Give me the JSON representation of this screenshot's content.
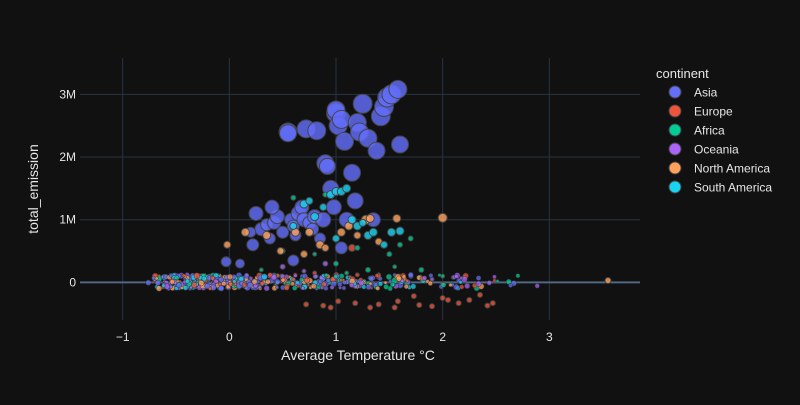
{
  "chart_data": {
    "type": "scatter",
    "title": "",
    "xlabel": "Average Temperature °C",
    "ylabel": "total_emission",
    "xlim": [
      -1.4,
      3.85
    ],
    "ylim": [
      -0.6,
      3.58
    ],
    "y_unit": "millions",
    "x_ticks": [
      {
        "value": -1,
        "label": "−1"
      },
      {
        "value": 0,
        "label": "0"
      },
      {
        "value": 1,
        "label": "1"
      },
      {
        "value": 2,
        "label": "2"
      },
      {
        "value": 3,
        "label": "3"
      }
    ],
    "y_ticks": [
      {
        "value": 0,
        "label": "0"
      },
      {
        "value": 1,
        "label": "1M"
      },
      {
        "value": 2,
        "label": "2M"
      },
      {
        "value": 3,
        "label": "3M"
      }
    ],
    "grid": true,
    "legend": {
      "title": "continent",
      "placement": "right"
    },
    "series": [
      {
        "name": "Asia",
        "color": "#636efa",
        "points": [
          [
            -0.03,
            0.33
          ],
          [
            0.1,
            0.3
          ],
          [
            0.22,
            0.6
          ],
          [
            0.25,
            1.1
          ],
          [
            0.3,
            0.85
          ],
          [
            0.35,
            0.92
          ],
          [
            0.38,
            0.7
          ],
          [
            0.42,
            0.95
          ],
          [
            0.45,
            1.05
          ],
          [
            0.5,
            0.8
          ],
          [
            0.55,
            2.4
          ],
          [
            0.55,
            2.38
          ],
          [
            0.58,
            1.0
          ],
          [
            0.6,
            0.9
          ],
          [
            0.62,
            0.75
          ],
          [
            0.65,
            1.1
          ],
          [
            0.68,
            1.2
          ],
          [
            0.7,
            1.0
          ],
          [
            0.72,
            2.45
          ],
          [
            0.75,
            0.95
          ],
          [
            0.78,
            0.85
          ],
          [
            0.8,
            1.05
          ],
          [
            0.82,
            2.42
          ],
          [
            0.85,
            0.7
          ],
          [
            0.88,
            1.0
          ],
          [
            0.9,
            1.9
          ],
          [
            0.92,
            1.85
          ],
          [
            0.95,
            1.5
          ],
          [
            0.98,
            1.2
          ],
          [
            1.0,
            2.7
          ],
          [
            1.0,
            2.75
          ],
          [
            1.02,
            2.5
          ],
          [
            1.05,
            2.6
          ],
          [
            1.08,
            2.25
          ],
          [
            1.1,
            1.0
          ],
          [
            1.15,
            1.75
          ],
          [
            1.18,
            1.3
          ],
          [
            1.2,
            2.55
          ],
          [
            1.22,
            2.4
          ],
          [
            1.25,
            2.85
          ],
          [
            1.3,
            2.3
          ],
          [
            1.35,
            1.0
          ],
          [
            1.38,
            2.1
          ],
          [
            1.42,
            2.65
          ],
          [
            1.45,
            2.8
          ],
          [
            1.48,
            2.95
          ],
          [
            1.52,
            3.0
          ],
          [
            1.58,
            3.08
          ],
          [
            1.6,
            2.2
          ],
          [
            0.2,
            0.8
          ],
          [
            0.4,
            1.2
          ],
          [
            0.6,
            0.35
          ],
          [
            1.05,
            0.55
          ]
        ],
        "sizes": [
          10,
          9,
          12,
          14,
          13,
          12,
          11,
          13,
          14,
          12,
          18,
          17,
          13,
          12,
          11,
          15,
          14,
          14,
          18,
          13,
          12,
          14,
          18,
          11,
          15,
          17,
          16,
          16,
          15,
          19,
          18,
          18,
          18,
          18,
          15,
          17,
          16,
          18,
          18,
          19,
          18,
          14,
          17,
          19,
          19,
          19,
          19,
          18,
          17,
          10,
          14,
          11,
          12
        ]
      },
      {
        "name": "Europe",
        "color": "#ef553b",
        "points": [
          [
            0.72,
            -0.35
          ],
          [
            0.88,
            -0.37
          ],
          [
            0.95,
            -0.4
          ],
          [
            1.02,
            -0.3
          ],
          [
            1.18,
            -0.33
          ],
          [
            1.32,
            -0.4
          ],
          [
            1.4,
            -0.35
          ],
          [
            1.55,
            -0.4
          ],
          [
            1.58,
            -0.3
          ],
          [
            1.73,
            -0.22
          ],
          [
            1.78,
            -0.36
          ],
          [
            1.9,
            -0.38
          ],
          [
            2.0,
            -0.25
          ],
          [
            2.05,
            -0.28
          ],
          [
            2.15,
            -0.33
          ],
          [
            2.25,
            -0.28
          ],
          [
            2.35,
            -0.2
          ],
          [
            2.42,
            -0.37
          ],
          [
            2.47,
            -0.33
          ],
          [
            1.15,
            0.55
          ],
          [
            0.8,
            0.15
          ],
          [
            1.6,
            0.1
          ],
          [
            1.2,
            0.12
          ],
          [
            2.1,
            0.08
          ]
        ],
        "sizes": [
          5,
          5,
          5,
          5,
          5,
          5,
          5,
          5,
          5,
          5,
          5,
          5,
          5,
          5,
          5,
          5,
          5,
          5,
          5,
          7,
          4,
          4,
          4,
          4
        ]
      },
      {
        "name": "Africa",
        "color": "#00cc96",
        "points": [
          [
            0.6,
            1.35
          ],
          [
            0.9,
            1.4
          ],
          [
            1.0,
            0.3
          ],
          [
            1.2,
            0.55
          ],
          [
            1.3,
            0.2
          ],
          [
            1.5,
            0.45
          ],
          [
            1.6,
            0.6
          ],
          [
            1.7,
            0.7
          ],
          [
            1.8,
            0.2
          ],
          [
            0.5,
            0.5
          ],
          [
            0.45,
            0.1
          ],
          [
            1.1,
            0.15
          ],
          [
            1.4,
            0.12
          ],
          [
            2.0,
            0.1
          ],
          [
            2.2,
            0.08
          ],
          [
            0.3,
            0.2
          ],
          [
            0.8,
            0.45
          ],
          [
            1.55,
            0.25
          ]
        ],
        "sizes": [
          5,
          5,
          5,
          5,
          5,
          5,
          5,
          5,
          5,
          5,
          4,
          4,
          4,
          4,
          4,
          4,
          4,
          4
        ]
      },
      {
        "name": "Oceania",
        "color": "#ab63fa",
        "points": [
          [
            0.5,
            0.25
          ],
          [
            0.9,
            0.3
          ],
          [
            1.0,
            0.12
          ],
          [
            1.4,
            0.08
          ],
          [
            1.9,
            0.05
          ],
          [
            0.2,
            0.06
          ],
          [
            0.7,
            0.18
          ]
        ],
        "sizes": [
          5,
          5,
          4,
          4,
          4,
          4,
          4
        ]
      },
      {
        "name": "North America",
        "color": "#ffa15a",
        "points": [
          [
            0.15,
            0.8
          ],
          [
            0.35,
            0.75
          ],
          [
            0.48,
            0.5
          ],
          [
            0.62,
            0.8
          ],
          [
            0.7,
            0.45
          ],
          [
            0.75,
            0.8
          ],
          [
            0.85,
            0.6
          ],
          [
            0.9,
            0.55
          ],
          [
            1.05,
            0.8
          ],
          [
            1.12,
            0.9
          ],
          [
            1.28,
            1.0
          ],
          [
            1.32,
            1.02
          ],
          [
            1.4,
            0.65
          ],
          [
            1.57,
            1.02
          ],
          [
            2.0,
            1.03
          ],
          [
            -0.02,
            0.6
          ],
          [
            1.2,
            0.75
          ],
          [
            3.55,
            0.03
          ]
        ],
        "sizes": [
          8,
          8,
          7,
          8,
          7,
          8,
          8,
          7,
          8,
          8,
          9,
          8,
          7,
          8,
          9,
          7,
          7,
          6
        ]
      },
      {
        "name": "South America",
        "color": "#19d3f3",
        "points": [
          [
            0.7,
            1.25
          ],
          [
            0.8,
            1.05
          ],
          [
            0.95,
            1.4
          ],
          [
            1.0,
            1.45
          ],
          [
            1.05,
            1.45
          ],
          [
            1.1,
            1.5
          ],
          [
            1.15,
            1.0
          ],
          [
            1.2,
            0.9
          ],
          [
            1.3,
            0.75
          ],
          [
            1.35,
            0.8
          ],
          [
            1.45,
            0.6
          ],
          [
            1.52,
            0.8
          ],
          [
            1.6,
            0.82
          ],
          [
            0.75,
            1.3
          ],
          [
            0.88,
            1.2
          ],
          [
            1.25,
            0.95
          ],
          [
            0.6,
            0.9
          ],
          [
            1.0,
            0.7
          ]
        ],
        "sizes": [
          8,
          8,
          8,
          8,
          8,
          8,
          8,
          8,
          8,
          8,
          7,
          8,
          8,
          7,
          7,
          7,
          7,
          7
        ]
      }
    ]
  }
}
